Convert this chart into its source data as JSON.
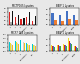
{
  "panel_bg": "#e8e8e8",
  "subplots": [
    {
      "title": "MCTP165 Lysates",
      "groups": [
        "0",
        "1",
        "10",
        "Staurosporin",
        "ABT"
      ],
      "series": [
        {
          "color": "#dd2222",
          "values": [
            1.5,
            0.9,
            0.7,
            0.9,
            0.5
          ]
        },
        {
          "color": "#aaaaaa",
          "values": [
            0.3,
            0.2,
            0.15,
            0.25,
            0.1
          ]
        },
        {
          "color": "#111111",
          "values": [
            1.7,
            1.2,
            0.8,
            1.55,
            1.1
          ]
        }
      ],
      "ylim": [
        0,
        2.0
      ]
    },
    {
      "title": "BIEP 1 Lysates",
      "groups": [
        "0",
        "1",
        "Staurosporin",
        "Omeg"
      ],
      "series": [
        {
          "color": "#4472c4",
          "values": [
            1.1,
            1.0,
            1.3,
            0.95
          ]
        },
        {
          "color": "#ed7d31",
          "values": [
            0.45,
            0.4,
            0.55,
            0.5
          ]
        }
      ],
      "ylim": [
        0,
        1.6
      ]
    },
    {
      "title": "MCF7 165 Lysates",
      "groups": [
        "0",
        "1",
        "10",
        "Staurosporin",
        "ABT"
      ],
      "series": [
        {
          "color": "#00c8d4",
          "values": [
            0.55,
            0.6,
            0.65,
            0.5,
            0.45
          ]
        },
        {
          "color": "#f0e030",
          "values": [
            0.5,
            0.55,
            0.6,
            0.45,
            0.4
          ]
        },
        {
          "color": "#d0d0d0",
          "values": [
            0.45,
            0.5,
            0.55,
            0.4,
            0.35
          ]
        },
        {
          "color": "#f0c020",
          "values": [
            0.4,
            0.45,
            0.5,
            0.35,
            0.3
          ]
        }
      ],
      "ylim": [
        0,
        1.0
      ]
    },
    {
      "title": "BIEP 1 Lysates",
      "groups": [
        "0",
        "1",
        "10",
        "Staurosporin",
        "Omeg"
      ],
      "series": [
        {
          "color": "#f0e030",
          "values": [
            0.5,
            0.55,
            0.6,
            1.1,
            0.45
          ]
        },
        {
          "color": "#dd2222",
          "values": [
            0.45,
            0.5,
            0.55,
            0.9,
            0.4
          ]
        },
        {
          "color": "#4472c4",
          "values": [
            0.4,
            0.45,
            0.5,
            0.7,
            0.35
          ]
        },
        {
          "color": "#44aa44",
          "values": [
            0.35,
            0.4,
            0.45,
            0.6,
            0.3
          ]
        }
      ],
      "ylim": [
        0,
        1.4
      ]
    }
  ]
}
